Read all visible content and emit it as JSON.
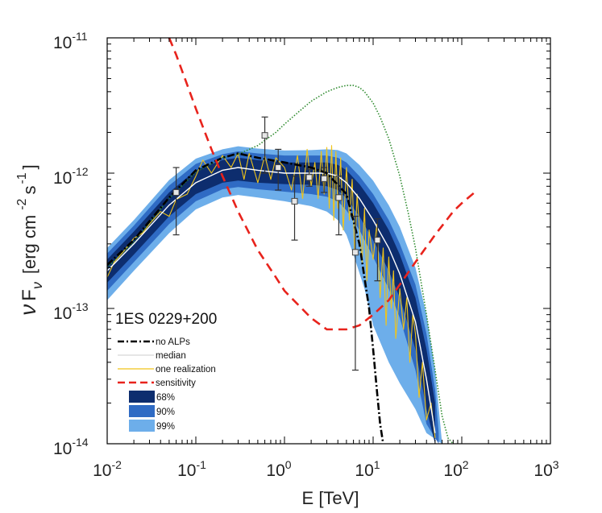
{
  "chart_data": {
    "type": "line",
    "title": "",
    "xlabel": "E [TeV]",
    "ylabel_parts": {
      "nu": "ν",
      "F": "F",
      "sub": "ν",
      "unit": "[erg cm",
      "cm_exp": "-2",
      "s": "s",
      "s_exp": "-1",
      "close": "]"
    },
    "xscale": "log",
    "yscale": "log",
    "xlim": [
      0.01,
      1000
    ],
    "ylim": [
      1e-14,
      1e-11
    ],
    "x_ticks": [
      {
        "base": "10",
        "exp": "-2"
      },
      {
        "base": "10",
        "exp": "-1"
      },
      {
        "base": "10",
        "exp": "0"
      },
      {
        "base": "10",
        "exp": "1"
      },
      {
        "base": "10",
        "exp": "2"
      },
      {
        "base": "10",
        "exp": "3"
      }
    ],
    "y_ticks": [
      {
        "base": "10",
        "exp": "-14"
      },
      {
        "base": "10",
        "exp": "-13"
      },
      {
        "base": "10",
        "exp": "-12"
      },
      {
        "base": "10",
        "exp": "-11"
      }
    ],
    "x_tick_values": [
      0.01,
      0.1,
      1,
      10,
      100,
      1000
    ],
    "y_tick_values": [
      1e-14,
      1e-13,
      1e-12,
      1e-11
    ],
    "legend": {
      "title": "1ES 0229+200",
      "position": "lower-left",
      "entries": [
        {
          "label": "no ALPs",
          "style": "dash-dot",
          "color": "#000000"
        },
        {
          "label": "median",
          "style": "solid",
          "color": "#dddddd"
        },
        {
          "label": "one realization",
          "style": "solid",
          "color": "#f0c419"
        },
        {
          "label": "sensitivity",
          "style": "dashed",
          "color": "#e8231c"
        },
        {
          "label": "68%",
          "style": "patch",
          "color": "#0d2d6e"
        },
        {
          "label": "90%",
          "style": "patch",
          "color": "#2f6bc4"
        },
        {
          "label": "99%",
          "style": "patch",
          "color": "#6daeea"
        }
      ]
    },
    "colors": {
      "band68": "#0d2d6e",
      "band90": "#2f6bc4",
      "band99": "#6daeea",
      "median": "#ffffff",
      "realization": "#f0c419",
      "sensitivity": "#e8231c",
      "noalps": "#000000",
      "green": "#2e8b2e"
    },
    "series": [
      {
        "name": "no ALPs",
        "x": [
          0.01,
          0.02,
          0.05,
          0.1,
          0.2,
          0.3,
          0.5,
          1,
          2,
          3,
          5,
          7,
          9,
          10,
          11,
          12,
          13
        ],
        "y": [
          2.1e-13,
          3.2e-13,
          6.6e-13,
          1.05e-12,
          1.3e-12,
          1.4e-12,
          1.3e-12,
          1.2e-12,
          1.1e-12,
          1e-12,
          7e-13,
          3e-13,
          1e-13,
          5e-14,
          2.5e-14,
          1.4e-14,
          1e-14
        ]
      },
      {
        "name": "median",
        "x": [
          0.01,
          0.02,
          0.05,
          0.1,
          0.2,
          0.3,
          0.5,
          1,
          2,
          3,
          4,
          5,
          7,
          10,
          15,
          20,
          30,
          40,
          50
        ],
        "y": [
          1.9e-13,
          3e-13,
          5.8e-13,
          8.5e-13,
          1.05e-12,
          1.1e-12,
          1.05e-12,
          1e-12,
          1e-12,
          1e-12,
          9.5e-13,
          8.5e-13,
          6.5e-13,
          4.5e-13,
          2.8e-13,
          1.8e-13,
          8e-14,
          3e-14,
          1.2e-14
        ]
      },
      {
        "name": "band68_upper",
        "x": [
          0.01,
          0.02,
          0.05,
          0.1,
          0.2,
          0.3,
          0.5,
          1,
          2,
          3,
          4,
          5,
          7,
          10,
          15,
          20,
          30,
          40,
          50
        ],
        "y": [
          2.3e-13,
          3.7e-13,
          7.2e-13,
          1.05e-12,
          1.25e-12,
          1.3e-12,
          1.25e-12,
          1.2e-12,
          1.2e-12,
          1.2e-12,
          1.15e-12,
          1.05e-12,
          8.3e-13,
          6e-13,
          3.8e-13,
          2.5e-13,
          1.2e-13,
          5e-14,
          2e-14
        ]
      },
      {
        "name": "band68_lower",
        "x": [
          0.01,
          0.02,
          0.05,
          0.1,
          0.2,
          0.3,
          0.5,
          1,
          2,
          3,
          4,
          5,
          7,
          10,
          15,
          20,
          30,
          40,
          50
        ],
        "y": [
          1.55e-13,
          2.5e-13,
          4.8e-13,
          7e-13,
          8.5e-13,
          8.8e-13,
          8.5e-13,
          8.3e-13,
          8.2e-13,
          8e-13,
          7.5e-13,
          6.5e-13,
          4.8e-13,
          3.2e-13,
          1.9e-13,
          1.2e-13,
          5e-14,
          1.8e-14,
          1e-14
        ]
      },
      {
        "name": "band90_upper",
        "x": [
          0.01,
          0.02,
          0.05,
          0.1,
          0.2,
          0.3,
          0.5,
          1,
          2,
          3,
          4,
          5,
          7,
          10,
          15,
          20,
          30,
          40,
          50,
          55
        ],
        "y": [
          2.55e-13,
          4.1e-13,
          8.1e-13,
          1.17e-12,
          1.38e-12,
          1.45e-12,
          1.4e-12,
          1.35e-12,
          1.35e-12,
          1.35e-12,
          1.3e-12,
          1.2e-12,
          9.5e-13,
          7e-13,
          4.5e-13,
          3e-13,
          1.5e-13,
          6.5e-14,
          2.5e-14,
          1.2e-14
        ]
      },
      {
        "name": "band90_lower",
        "x": [
          0.01,
          0.02,
          0.05,
          0.1,
          0.2,
          0.3,
          0.5,
          1,
          2,
          3,
          4,
          5,
          7,
          10,
          15,
          20,
          30,
          40,
          55
        ],
        "y": [
          1.35e-13,
          2.2e-13,
          4.2e-13,
          6.2e-13,
          7.6e-13,
          7.9e-13,
          7.6e-13,
          7.3e-13,
          7e-13,
          6.7e-13,
          6.2e-13,
          5.3e-13,
          3.8e-13,
          2.4e-13,
          1.4e-13,
          8.5e-14,
          3.5e-14,
          1.4e-14,
          1e-14
        ]
      },
      {
        "name": "band99_upper",
        "x": [
          0.01,
          0.02,
          0.05,
          0.1,
          0.2,
          0.3,
          0.5,
          1,
          2,
          3,
          4,
          5,
          7,
          10,
          15,
          20,
          30,
          40,
          50,
          60
        ],
        "y": [
          2.8e-13,
          4.5e-13,
          8.9e-13,
          1.28e-12,
          1.5e-12,
          1.58e-12,
          1.52e-12,
          1.47e-12,
          1.48e-12,
          1.5e-12,
          1.48e-12,
          1.4e-12,
          1.15e-12,
          8.8e-13,
          5.8e-13,
          4e-13,
          2e-13,
          9e-14,
          3.5e-14,
          1e-14
        ]
      },
      {
        "name": "band99_lower",
        "x": [
          0.01,
          0.02,
          0.05,
          0.1,
          0.2,
          0.3,
          0.5,
          1,
          2,
          3,
          4,
          5,
          6,
          8,
          10,
          15,
          20,
          30,
          40,
          60
        ],
        "y": [
          1.15e-13,
          1.9e-13,
          3.6e-13,
          5.4e-13,
          6.6e-13,
          6.9e-13,
          6.6e-13,
          6.2e-13,
          5.7e-13,
          5.2e-13,
          4.5e-13,
          3.5e-13,
          2.5e-13,
          1.4e-13,
          7.5e-14,
          4e-14,
          2.8e-14,
          1.8e-14,
          1.2e-14,
          1e-14
        ]
      },
      {
        "name": "sensitivity",
        "x": [
          0.05,
          0.06,
          0.08,
          0.1,
          0.15,
          0.2,
          0.3,
          0.5,
          0.8,
          1,
          2,
          3,
          5,
          7,
          10,
          15,
          20,
          30,
          50,
          80,
          100,
          150
        ],
        "y": [
          1e-11,
          7.5e-12,
          4.5e-12,
          3e-12,
          1.5e-12,
          9.5e-13,
          5.2e-13,
          2.7e-13,
          1.7e-13,
          1.35e-13,
          8.5e-14,
          7e-14,
          7e-14,
          7.5e-14,
          9e-14,
          1.15e-13,
          1.5e-13,
          2.2e-13,
          3.5e-13,
          5.2e-13,
          6e-13,
          7.5e-13
        ]
      },
      {
        "name": "green",
        "x": [
          0.01,
          0.02,
          0.05,
          0.1,
          0.2,
          0.3,
          0.5,
          0.8,
          1,
          1.5,
          2,
          3,
          4,
          5,
          6,
          7,
          8,
          10,
          12,
          15,
          20,
          25,
          30,
          40,
          50,
          60,
          70,
          80
        ],
        "y": [
          2e-13,
          3.1e-13,
          6.5e-13,
          1.02e-12,
          1.3e-12,
          1.38e-12,
          1.6e-12,
          2e-12,
          2.3e-12,
          2.9e-12,
          3.4e-12,
          4e-12,
          4.3e-12,
          4.45e-12,
          4.45e-12,
          4.3e-12,
          4e-12,
          3.3e-12,
          2.6e-12,
          1.8e-12,
          9.5e-13,
          5e-13,
          2.8e-13,
          9e-14,
          3.5e-14,
          1.6e-14,
          1.1e-14,
          1e-14
        ]
      },
      {
        "name": "one realization",
        "x": [
          0.01,
          0.012,
          0.015,
          0.02,
          0.025,
          0.03,
          0.04,
          0.05,
          0.06,
          0.08,
          0.1,
          0.12,
          0.15,
          0.2,
          0.25,
          0.3,
          0.35,
          0.4,
          0.5,
          0.6,
          0.7,
          0.8,
          1.0,
          1.2,
          1.4,
          1.6,
          1.8,
          2.0,
          2.2,
          2.4,
          2.6,
          2.8,
          3.0,
          3.2,
          3.4,
          3.6,
          3.8,
          4.0,
          4.3,
          4.6,
          5.0,
          5.4,
          5.8,
          6.2,
          6.6,
          7.0,
          7.5,
          8.0,
          8.5,
          9.0,
          10,
          11,
          12,
          13,
          14,
          15,
          16,
          17,
          18,
          20,
          22,
          24,
          26,
          28,
          30,
          33,
          36,
          40,
          45,
          50
        ],
        "y": [
          1.7e-13,
          2.2e-13,
          2.6e-13,
          3.3e-13,
          3.6e-13,
          4.2e-13,
          5.2e-13,
          4.8e-13,
          6.4e-13,
          7e-13,
          9.5e-13,
          1.25e-12,
          1e-12,
          1.35e-12,
          1.1e-12,
          1.4e-12,
          9e-13,
          1.4e-12,
          8.5e-13,
          1.35e-12,
          9e-13,
          1.3e-12,
          1.1e-12,
          7.5e-13,
          1.35e-12,
          6.5e-13,
          1.5e-12,
          8e-13,
          1.2e-12,
          6.5e-13,
          1.45e-12,
          7e-13,
          1.55e-12,
          5.5e-13,
          1.6e-12,
          4.5e-13,
          1.45e-12,
          5.5e-13,
          1.3e-12,
          3.8e-13,
          1.1e-12,
          4.5e-13,
          9e-13,
          2.5e-13,
          7e-13,
          4e-13,
          2.2e-13,
          5.5e-13,
          1.6e-13,
          3.8e-13,
          2.3e-13,
          4.2e-13,
          1.2e-13,
          2.8e-13,
          7.5e-14,
          2.4e-13,
          1e-13,
          1.9e-13,
          6e-14,
          1.4e-13,
          7e-14,
          1.2e-13,
          4e-14,
          9e-14,
          6.5e-14,
          2.2e-14,
          4e-14,
          1.5e-14,
          2e-14,
          1.1e-14
        ]
      }
    ],
    "data_points": [
      {
        "x": 0.06,
        "y": 7.2e-13,
        "ylo": 3.5e-13,
        "yhi": 1.1e-12
      },
      {
        "x": 0.6,
        "y": 1.9e-12,
        "ylo": 1e-12,
        "yhi": 2.6e-12
      },
      {
        "x": 0.85,
        "y": 1.1e-12,
        "ylo": 7.5e-13,
        "yhi": 1.5e-12
      },
      {
        "x": 1.3,
        "y": 6.2e-13,
        "ylo": 3.2e-13,
        "yhi": 9.5e-13
      },
      {
        "x": 1.9,
        "y": 9.3e-13,
        "ylo": 8e-13,
        "yhi": 1.07e-12
      },
      {
        "x": 2.8,
        "y": 9.1e-13,
        "ylo": 7.2e-13,
        "yhi": 1.1e-12
      },
      {
        "x": 4.1,
        "y": 6.6e-13,
        "ylo": 3.5e-13,
        "yhi": 9.5e-13
      },
      {
        "x": 6.3,
        "y": 2.6e-13,
        "ylo": 3.5e-14,
        "yhi": 4.8e-13
      },
      {
        "x": 11.2,
        "y": 3.2e-13,
        "ylo": 1.6e-13,
        "yhi": 4.6e-13
      }
    ]
  }
}
